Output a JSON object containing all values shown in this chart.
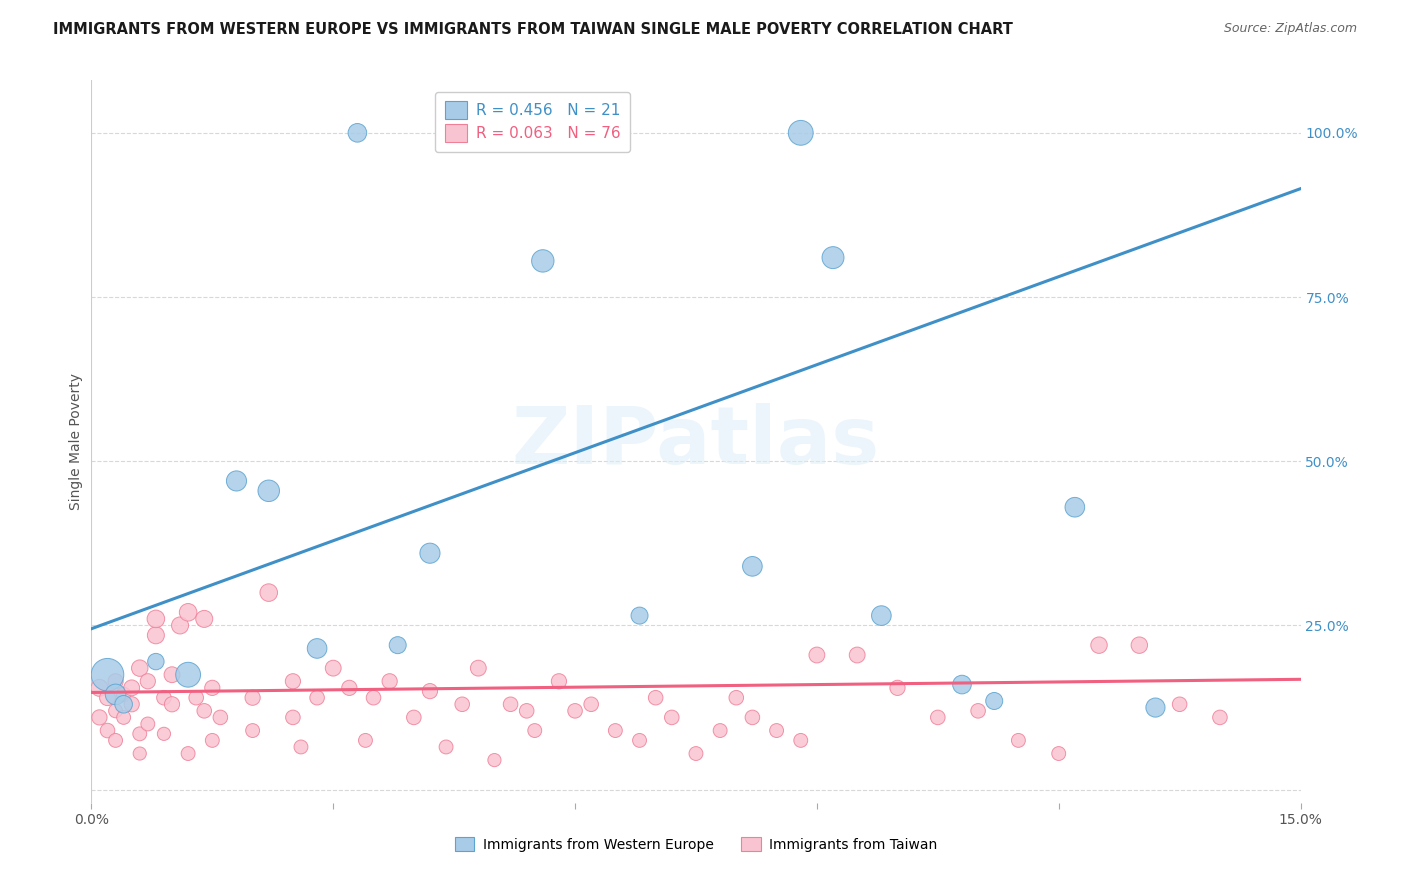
{
  "title": "IMMIGRANTS FROM WESTERN EUROPE VS IMMIGRANTS FROM TAIWAN SINGLE MALE POVERTY CORRELATION CHART",
  "source": "Source: ZipAtlas.com",
  "ylabel": "Single Male Poverty",
  "xlim": [
    0.0,
    0.15
  ],
  "ylim": [
    -0.02,
    1.08
  ],
  "right_yticks": [
    0.0,
    0.25,
    0.5,
    0.75,
    1.0
  ],
  "right_yticklabels": [
    "",
    "25.0%",
    "50.0%",
    "75.0%",
    "100.0%"
  ],
  "xticks": [
    0.0,
    0.03,
    0.06,
    0.09,
    0.12,
    0.15
  ],
  "xticklabels": [
    "0.0%",
    "",
    "",
    "",
    "",
    "15.0%"
  ],
  "blue_R": 0.456,
  "blue_N": 21,
  "pink_R": 0.063,
  "pink_N": 76,
  "blue_color": "#a8cce8",
  "pink_color": "#f9c4d2",
  "blue_edge_color": "#5ba3d0",
  "pink_edge_color": "#f08098",
  "blue_line_color": "#4090c8",
  "pink_line_color": "#f06080",
  "blue_label": "Immigrants from Western Europe",
  "pink_label": "Immigrants from Taiwan",
  "watermark": "ZIPatlas",
  "blue_scatter_x": [
    0.033,
    0.002,
    0.003,
    0.004,
    0.008,
    0.012,
    0.018,
    0.022,
    0.028,
    0.038,
    0.042,
    0.056,
    0.068,
    0.082,
    0.088,
    0.092,
    0.098,
    0.108,
    0.112,
    0.122,
    0.132
  ],
  "blue_scatter_y": [
    1.0,
    0.175,
    0.145,
    0.13,
    0.195,
    0.175,
    0.47,
    0.455,
    0.215,
    0.22,
    0.36,
    0.805,
    0.265,
    0.34,
    1.0,
    0.81,
    0.265,
    0.16,
    0.135,
    0.43,
    0.125
  ],
  "blue_scatter_size": [
    180,
    550,
    220,
    160,
    140,
    320,
    210,
    240,
    200,
    150,
    210,
    260,
    150,
    200,
    320,
    250,
    200,
    180,
    150,
    200,
    190
  ],
  "pink_scatter_x": [
    0.001,
    0.001,
    0.002,
    0.002,
    0.003,
    0.003,
    0.003,
    0.004,
    0.004,
    0.005,
    0.005,
    0.006,
    0.006,
    0.006,
    0.007,
    0.007,
    0.008,
    0.008,
    0.009,
    0.009,
    0.01,
    0.01,
    0.011,
    0.012,
    0.012,
    0.013,
    0.014,
    0.014,
    0.015,
    0.015,
    0.016,
    0.02,
    0.02,
    0.022,
    0.025,
    0.025,
    0.026,
    0.028,
    0.03,
    0.032,
    0.034,
    0.035,
    0.037,
    0.04,
    0.042,
    0.044,
    0.046,
    0.048,
    0.05,
    0.052,
    0.054,
    0.055,
    0.058,
    0.06,
    0.062,
    0.065,
    0.068,
    0.07,
    0.072,
    0.075,
    0.078,
    0.08,
    0.082,
    0.085,
    0.088,
    0.09,
    0.095,
    0.1,
    0.105,
    0.11,
    0.115,
    0.12,
    0.125,
    0.13,
    0.135,
    0.14
  ],
  "pink_scatter_y": [
    0.155,
    0.11,
    0.14,
    0.09,
    0.165,
    0.12,
    0.075,
    0.145,
    0.11,
    0.155,
    0.13,
    0.185,
    0.085,
    0.055,
    0.165,
    0.1,
    0.235,
    0.26,
    0.14,
    0.085,
    0.175,
    0.13,
    0.25,
    0.27,
    0.055,
    0.14,
    0.26,
    0.12,
    0.155,
    0.075,
    0.11,
    0.14,
    0.09,
    0.3,
    0.11,
    0.165,
    0.065,
    0.14,
    0.185,
    0.155,
    0.075,
    0.14,
    0.165,
    0.11,
    0.15,
    0.065,
    0.13,
    0.185,
    0.045,
    0.13,
    0.12,
    0.09,
    0.165,
    0.12,
    0.13,
    0.09,
    0.075,
    0.14,
    0.11,
    0.055,
    0.09,
    0.14,
    0.11,
    0.09,
    0.075,
    0.205,
    0.205,
    0.155,
    0.11,
    0.12,
    0.075,
    0.055,
    0.22,
    0.22,
    0.13,
    0.11
  ],
  "pink_scatter_size": [
    150,
    120,
    130,
    110,
    120,
    100,
    100,
    110,
    100,
    130,
    120,
    140,
    100,
    90,
    120,
    100,
    150,
    160,
    110,
    90,
    130,
    120,
    150,
    160,
    100,
    110,
    150,
    110,
    120,
    100,
    110,
    120,
    100,
    160,
    110,
    120,
    100,
    110,
    130,
    120,
    100,
    110,
    120,
    110,
    120,
    100,
    110,
    130,
    90,
    110,
    110,
    100,
    120,
    110,
    110,
    100,
    100,
    110,
    110,
    100,
    100,
    110,
    110,
    100,
    100,
    130,
    130,
    120,
    110,
    110,
    100,
    100,
    140,
    140,
    110,
    110
  ],
  "blue_trend_x": [
    0.0,
    0.15
  ],
  "blue_trend_y": [
    0.245,
    0.915
  ],
  "pink_trend_x": [
    0.0,
    0.15
  ],
  "pink_trend_y": [
    0.148,
    0.168
  ],
  "grid_color": "#d8d8d8",
  "background_color": "#ffffff",
  "title_fontsize": 10.5,
  "source_fontsize": 9,
  "legend_fontsize": 11,
  "axis_label_fontsize": 10,
  "tick_fontsize": 10,
  "right_tick_color": "#4090c8",
  "left_tick_color": "#888888"
}
